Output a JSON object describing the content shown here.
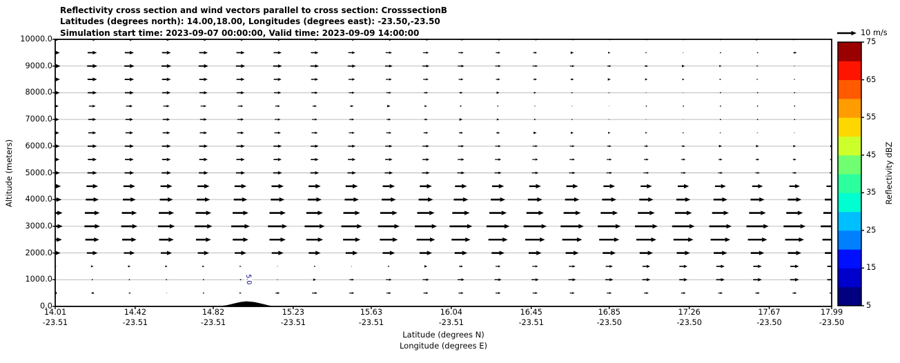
{
  "title": {
    "line1": "Reflectivity cross section and wind vectors parallel to cross section: CrosssectionB",
    "line2": "Latitudes (degrees north): 14.00,18.00, Longitudes (degrees east): -23.50,-23.50",
    "line3": "Simulation start time: 2023-09-07 00:00:00, Valid time: 2023-09-09 14:00:00"
  },
  "axes": {
    "y_label": "Altitude (meters)",
    "x_label_lat": "Latitude (degrees N)",
    "x_label_lon": "Longitude (degrees E)"
  },
  "quiver_key": {
    "label": "10 m/s",
    "speed_ms": 10
  },
  "colorbar": {
    "label": "Reflectivity dBZ",
    "tick_values": [
      5,
      15,
      25,
      35,
      45,
      55,
      65,
      75
    ],
    "level_min": 5,
    "level_max": 75,
    "level_step": 5,
    "band_colors_bottom_to_top": [
      "#000080",
      "#0000cd",
      "#0010ff",
      "#0080ff",
      "#00bfff",
      "#00ffd0",
      "#2bff9e",
      "#70ff70",
      "#cdff2b",
      "#ffd700",
      "#ff9c00",
      "#ff5a00",
      "#ff1400",
      "#9b0000"
    ]
  },
  "chart_data": {
    "type": "quiver",
    "title": "Reflectivity cross section and wind vectors parallel to cross section: CrosssectionB",
    "xlabel": "Latitude (degrees N) / Longitude (degrees E)",
    "ylabel": "Altitude (meters)",
    "x_range_lat": [
      14.01,
      17.99
    ],
    "y_range_m": [
      0,
      10000
    ],
    "grid": true,
    "x_ticks": [
      {
        "lat": "14.01",
        "lon": "-23.51"
      },
      {
        "lat": "14.42",
        "lon": "-23.51"
      },
      {
        "lat": "14.82",
        "lon": "-23.51"
      },
      {
        "lat": "15.23",
        "lon": "-23.51"
      },
      {
        "lat": "15.63",
        "lon": "-23.51"
      },
      {
        "lat": "16.04",
        "lon": "-23.51"
      },
      {
        "lat": "16.45",
        "lon": "-23.51"
      },
      {
        "lat": "16.85",
        "lon": "-23.50"
      },
      {
        "lat": "17.26",
        "lon": "-23.50"
      },
      {
        "lat": "17.67",
        "lon": "-23.50"
      },
      {
        "lat": "17.99",
        "lon": "-23.50"
      }
    ],
    "y_ticks": [
      "0.0",
      "1000.0",
      "2000.0",
      "3000.0",
      "4000.0",
      "5000.0",
      "6000.0",
      "7000.0",
      "8000.0",
      "9000.0",
      "10000.0"
    ],
    "wind": {
      "reference_ms": 10,
      "lats": [
        14.01,
        14.2,
        14.39,
        14.58,
        14.77,
        14.96,
        15.15,
        15.34,
        15.53,
        15.72,
        15.91,
        16.09,
        16.28,
        16.47,
        16.66,
        16.85,
        17.04,
        17.23,
        17.42,
        17.61,
        17.8,
        17.99
      ],
      "altitudes_m": [
        500,
        1000,
        1500,
        2000,
        2500,
        3000,
        3500,
        4000,
        4500,
        5000,
        5500,
        6000,
        6500,
        7000,
        7500,
        8000,
        8500,
        9000,
        9500,
        10000
      ],
      "u_ms": [
        [
          -1.5,
          -1.4,
          -1.0,
          -0.4,
          0.2,
          1.0,
          2.2,
          2.8,
          2.5,
          2.4,
          2.5,
          2.6,
          2.6,
          2.6,
          2.5,
          2.5,
          2.4,
          2.4,
          2.3,
          2.3,
          2.2,
          2.2
        ],
        [
          0.2,
          0.2,
          0.2,
          0.2,
          0.2,
          0.3,
          0.6,
          1.5,
          2.4,
          3.0,
          3.3,
          3.5,
          3.6,
          3.8,
          3.9,
          4.1,
          4.2,
          4.3,
          4.4,
          4.5,
          4.6,
          4.6
        ],
        [
          1.4,
          1.3,
          1.3,
          1.2,
          1.1,
          0.9,
          0.5,
          0.3,
          0.5,
          0.9,
          1.5,
          2.1,
          2.6,
          3.0,
          3.4,
          3.7,
          4.0,
          4.2,
          4.3,
          4.4,
          4.5,
          4.6
        ],
        [
          5.5,
          5.6,
          5.7,
          5.8,
          5.9,
          6.0,
          6.1,
          6.2,
          6.3,
          6.4,
          6.5,
          6.6,
          6.7,
          6.7,
          6.8,
          6.8,
          6.9,
          6.9,
          7.0,
          7.0,
          7.0,
          7.0
        ],
        [
          7.0,
          7.2,
          7.4,
          7.6,
          7.8,
          8.1,
          8.4,
          8.7,
          9.0,
          9.3,
          9.6,
          9.8,
          10.0,
          10.2,
          10.3,
          10.4,
          10.4,
          10.3,
          10.2,
          10.0,
          9.8,
          9.6
        ],
        [
          7.8,
          8.1,
          8.4,
          8.8,
          9.2,
          9.6,
          10.0,
          10.4,
          10.8,
          11.2,
          11.5,
          11.8,
          12.0,
          12.0,
          12.0,
          11.9,
          11.8,
          11.7,
          11.6,
          11.5,
          11.4,
          11.3
        ],
        [
          7.6,
          7.7,
          7.8,
          7.9,
          8.1,
          8.2,
          8.4,
          8.6,
          8.7,
          8.9,
          9.0,
          9.0,
          9.0,
          9.0,
          8.9,
          8.9,
          8.8,
          8.8,
          8.7,
          8.7,
          8.6,
          8.6
        ],
        [
          6.6,
          6.7,
          6.7,
          6.8,
          6.9,
          7.0,
          7.1,
          7.2,
          7.3,
          7.4,
          7.5,
          7.5,
          7.5,
          7.5,
          7.4,
          7.4,
          7.3,
          7.3,
          7.2,
          7.2,
          7.1,
          7.1
        ],
        [
          6.0,
          6.0,
          6.1,
          6.1,
          6.2,
          6.2,
          6.3,
          6.3,
          6.3,
          6.3,
          6.3,
          6.2,
          6.2,
          6.1,
          6.1,
          6.0,
          5.9,
          5.8,
          5.7,
          5.6,
          5.5,
          5.4
        ],
        [
          5.0,
          5.0,
          4.9,
          4.9,
          4.8,
          4.7,
          4.6,
          4.5,
          4.4,
          4.2,
          4.0,
          3.8,
          3.6,
          3.4,
          3.2,
          3.0,
          2.8,
          2.6,
          2.4,
          2.3,
          2.2,
          2.1
        ],
        [
          4.6,
          4.6,
          4.5,
          4.5,
          4.4,
          4.3,
          4.2,
          4.1,
          4.0,
          3.8,
          3.6,
          3.4,
          3.2,
          3.0,
          2.8,
          2.6,
          2.4,
          2.2,
          2.0,
          1.9,
          1.8,
          1.7
        ],
        [
          4.8,
          4.8,
          4.7,
          4.6,
          4.5,
          4.4,
          4.3,
          4.1,
          3.9,
          3.7,
          3.5,
          3.2,
          3.0,
          2.7,
          2.5,
          2.2,
          2.0,
          1.8,
          1.6,
          1.5,
          1.4,
          1.3
        ],
        [
          4.2,
          4.1,
          4.0,
          3.9,
          3.8,
          3.6,
          3.4,
          3.2,
          3.0,
          2.7,
          2.4,
          2.1,
          1.9,
          1.6,
          1.4,
          1.2,
          1.0,
          0.8,
          0.7,
          0.6,
          0.5,
          0.5
        ],
        [
          4.2,
          4.1,
          4.0,
          3.8,
          3.6,
          3.4,
          3.1,
          2.8,
          2.5,
          2.2,
          1.9,
          1.6,
          1.3,
          1.0,
          0.8,
          0.6,
          0.5,
          0.4,
          0.3,
          0.2,
          0.2,
          0.1
        ],
        [
          3.6,
          3.5,
          3.4,
          3.2,
          3.0,
          2.8,
          2.5,
          2.2,
          1.9,
          1.6,
          1.3,
          1.0,
          0.8,
          0.6,
          0.5,
          0.4,
          0.3,
          0.2,
          0.2,
          0.1,
          0.1,
          0.1
        ],
        [
          4.8,
          4.7,
          4.6,
          4.4,
          4.2,
          4.0,
          3.7,
          3.4,
          3.0,
          2.6,
          2.2,
          1.8,
          1.5,
          1.2,
          0.9,
          0.7,
          0.5,
          0.4,
          0.3,
          0.2,
          0.2,
          0.1
        ],
        [
          5.0,
          4.9,
          4.8,
          4.6,
          4.4,
          4.2,
          4.0,
          3.7,
          3.4,
          3.1,
          2.8,
          2.5,
          2.2,
          1.9,
          1.7,
          1.5,
          1.3,
          1.1,
          0.9,
          0.8,
          0.7,
          0.6
        ],
        [
          5.4,
          5.3,
          5.2,
          5.1,
          5.0,
          4.8,
          4.6,
          4.4,
          4.2,
          3.9,
          3.6,
          3.3,
          3.0,
          2.7,
          2.4,
          2.1,
          1.8,
          1.5,
          1.2,
          0.9,
          0.6,
          0.4
        ],
        [
          4.8,
          4.8,
          4.7,
          4.6,
          4.5,
          4.3,
          4.1,
          3.9,
          3.6,
          3.3,
          3.0,
          2.7,
          2.4,
          2.0,
          1.6,
          1.2,
          0.8,
          0.5,
          0.3,
          0.3,
          -1.8,
          0.3
        ],
        [
          4.5,
          4.5,
          4.5,
          4.4,
          4.4,
          4.3,
          4.2,
          4.1,
          4.0,
          3.9,
          3.8,
          3.6,
          3.4,
          3.2,
          3.0,
          2.8,
          2.5,
          2.2,
          1.9,
          1.6,
          1.3,
          1.0
        ]
      ]
    },
    "terrain_profile": [
      {
        "lat": 14.84,
        "alt_m": 0
      },
      {
        "lat": 14.89,
        "alt_m": 45
      },
      {
        "lat": 14.93,
        "alt_m": 115
      },
      {
        "lat": 14.96,
        "alt_m": 165
      },
      {
        "lat": 14.99,
        "alt_m": 190
      },
      {
        "lat": 15.03,
        "alt_m": 165
      },
      {
        "lat": 15.07,
        "alt_m": 100
      },
      {
        "lat": 15.1,
        "alt_m": 45
      },
      {
        "lat": 15.13,
        "alt_m": 0
      }
    ],
    "contour_labels": [
      {
        "text": "5.0",
        "lat": 15.0,
        "alt_m": 1000,
        "color": "#000080"
      }
    ],
    "legend_position": "right-colorbar"
  }
}
